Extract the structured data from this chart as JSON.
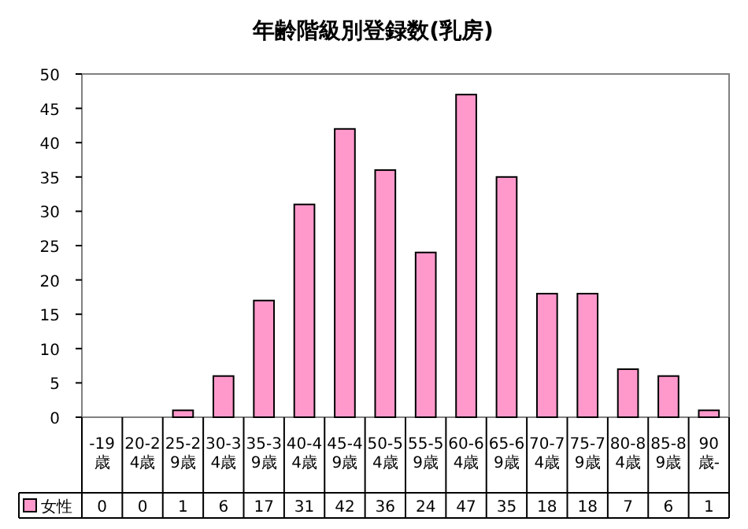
{
  "chart_data": {
    "type": "bar",
    "title": "年齢階級別登録数(乳房)",
    "categories": [
      "-19歳",
      "20-24歳",
      "25-29歳",
      "30-34歳",
      "35-39歳",
      "40-44歳",
      "45-49歳",
      "50-54歳",
      "55-59歳",
      "60-64歳",
      "65-69歳",
      "70-74歳",
      "75-79歳",
      "80-84歳",
      "85-89歳",
      "90歳-"
    ],
    "series": [
      {
        "name": "女性",
        "color": "#ff99cc",
        "values": [
          0,
          0,
          1,
          6,
          17,
          31,
          42,
          36,
          24,
          47,
          35,
          18,
          18,
          7,
          6,
          1
        ]
      }
    ],
    "ylim": [
      0,
      50
    ],
    "yticks": [
      0,
      5,
      10,
      15,
      20,
      25,
      30,
      35,
      40,
      45,
      50
    ],
    "grid": false,
    "legend": "bottom",
    "data_labels": true
  }
}
